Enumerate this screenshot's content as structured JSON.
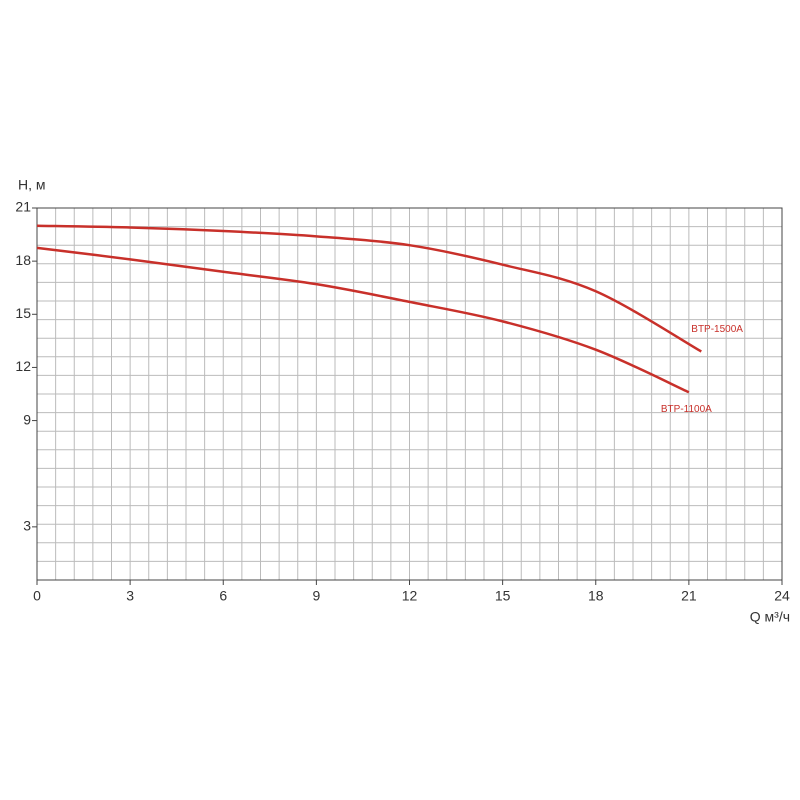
{
  "chart_data": {
    "type": "line",
    "y_label": "H, м",
    "x_label": "Q м³/ч",
    "x": [
      0,
      3,
      6,
      9,
      12,
      15,
      18,
      21
    ],
    "series": [
      {
        "name": "BTP-1500A",
        "color": "#c8302a",
        "x": [
          0,
          3,
          6,
          9,
          12,
          15,
          18,
          21.4
        ],
        "values": [
          20.0,
          19.9,
          19.7,
          19.4,
          18.9,
          17.8,
          16.3,
          12.9
        ]
      },
      {
        "name": "BTP-1100A",
        "color": "#c8302a",
        "x": [
          0,
          3,
          6,
          9,
          12,
          15,
          18,
          21
        ],
        "values": [
          18.75,
          18.1,
          17.4,
          16.7,
          15.7,
          14.6,
          13.0,
          10.6
        ]
      }
    ],
    "xlim": [
      0,
      24
    ],
    "xticks": [
      0,
      3,
      6,
      9,
      12,
      15,
      18,
      21,
      24
    ],
    "ylim": [
      0,
      21
    ],
    "yticks": [
      3,
      9,
      12,
      15,
      18,
      21
    ],
    "grid": true,
    "grid_divisions": [
      40,
      20
    ]
  }
}
